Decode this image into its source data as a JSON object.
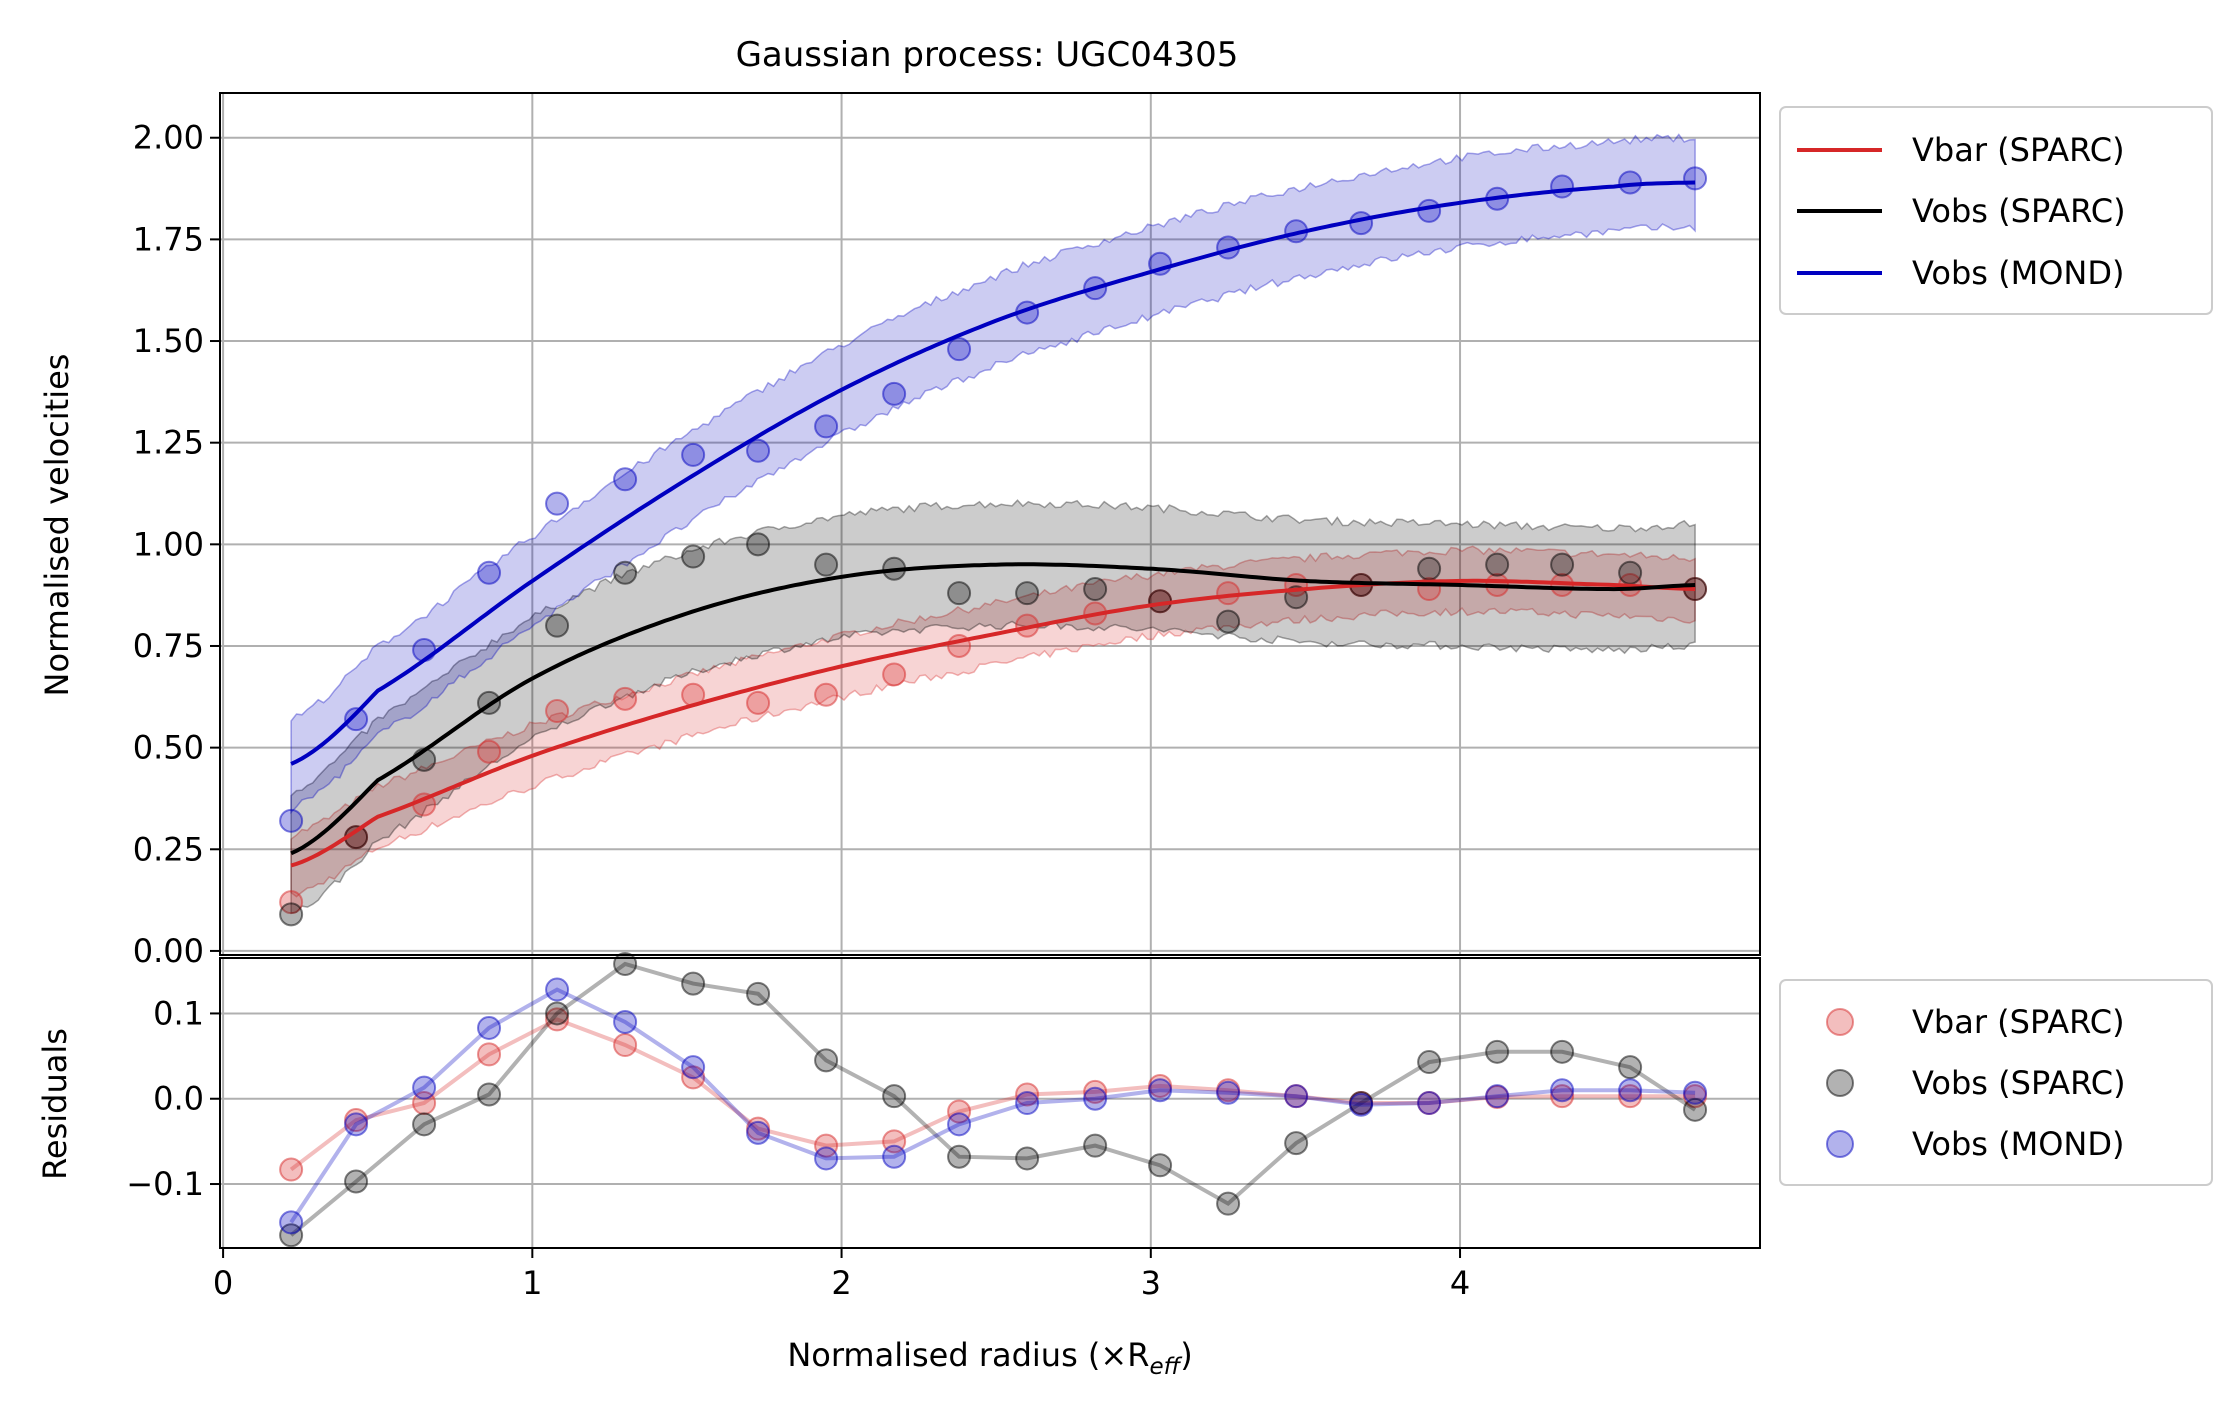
{
  "chart_data": [
    {
      "panel": "main",
      "type": "line",
      "title": "Gaussian process: UGC04305",
      "ylabel": "Normalised velocities",
      "xlabel": "",
      "xlim": [
        -0.01,
        4.97
      ],
      "ylim": [
        -0.01,
        2.11
      ],
      "yticks": [
        0.0,
        0.25,
        0.5,
        0.75,
        1.0,
        1.25,
        1.5,
        1.75,
        2.0
      ],
      "ytick_labels": [
        "0.00",
        "0.25",
        "0.50",
        "0.75",
        "1.00",
        "1.25",
        "1.50",
        "1.75",
        "2.00"
      ],
      "grid": true,
      "legend_position": "outside upper-right",
      "x": [
        0.22,
        0.43,
        0.65,
        0.86,
        1.08,
        1.3,
        1.52,
        1.73,
        1.95,
        2.17,
        2.38,
        2.6,
        2.82,
        3.03,
        3.25,
        3.47,
        3.68,
        3.9,
        4.12,
        4.33,
        4.55,
        4.76
      ],
      "series": [
        {
          "name": "Vbar (SPARC)",
          "color": "#d62728",
          "points": [
            0.12,
            0.28,
            0.36,
            0.49,
            0.59,
            0.62,
            0.63,
            0.61,
            0.63,
            0.68,
            0.75,
            0.8,
            0.83,
            0.86,
            0.88,
            0.9,
            0.9,
            0.89,
            0.9,
            0.9,
            0.9,
            0.89
          ],
          "curve_x": [
            0.22,
            0.5,
            1.0,
            1.5,
            2.0,
            2.5,
            3.0,
            3.5,
            4.0,
            4.5,
            4.76
          ],
          "curve_y": [
            0.21,
            0.33,
            0.48,
            0.6,
            0.7,
            0.78,
            0.85,
            0.89,
            0.91,
            0.9,
            0.89
          ],
          "band": 0.075
        },
        {
          "name": "Vobs (SPARC)",
          "color": "#000000",
          "points": [
            0.09,
            0.28,
            0.47,
            0.61,
            0.8,
            0.93,
            0.97,
            1.0,
            0.95,
            0.94,
            0.88,
            0.88,
            0.89,
            0.86,
            0.81,
            0.87,
            0.9,
            0.94,
            0.95,
            0.95,
            0.93,
            0.89
          ],
          "curve_x": [
            0.22,
            0.5,
            1.0,
            1.5,
            2.0,
            2.5,
            3.0,
            3.5,
            4.0,
            4.5,
            4.76
          ],
          "curve_y": [
            0.24,
            0.42,
            0.67,
            0.83,
            0.92,
            0.95,
            0.94,
            0.91,
            0.9,
            0.89,
            0.9
          ],
          "band": 0.15
        },
        {
          "name": "Vobs (MOND)",
          "color": "#0000c0",
          "points": [
            0.32,
            0.57,
            0.74,
            0.93,
            1.1,
            1.16,
            1.22,
            1.23,
            1.29,
            1.37,
            1.48,
            1.57,
            1.63,
            1.69,
            1.73,
            1.77,
            1.79,
            1.82,
            1.85,
            1.88,
            1.89,
            1.9
          ],
          "curve_x": [
            0.22,
            0.5,
            1.0,
            1.5,
            2.0,
            2.5,
            3.0,
            3.5,
            4.0,
            4.5,
            4.76
          ],
          "curve_y": [
            0.46,
            0.64,
            0.91,
            1.16,
            1.38,
            1.55,
            1.67,
            1.77,
            1.84,
            1.88,
            1.89
          ],
          "band": 0.11
        }
      ]
    },
    {
      "panel": "residuals",
      "type": "line",
      "ylabel": "Residuals",
      "xlabel": "Normalised radius (×R",
      "xlabel_sub": "eff",
      "xlabel_close": ")",
      "xlim": [
        -0.01,
        4.97
      ],
      "ylim": [
        -0.175,
        0.165
      ],
      "xticks": [
        0,
        1,
        2,
        3,
        4
      ],
      "xtick_labels": [
        "0",
        "1",
        "2",
        "3",
        "4"
      ],
      "yticks": [
        -0.1,
        0.0,
        0.1
      ],
      "ytick_labels": [
        "−0.1",
        "0.0",
        "0.1"
      ],
      "grid": true,
      "legend_position": "outside right",
      "x": [
        0.22,
        0.43,
        0.65,
        0.86,
        1.08,
        1.3,
        1.52,
        1.73,
        1.95,
        2.17,
        2.38,
        2.6,
        2.82,
        3.03,
        3.25,
        3.47,
        3.68,
        3.9,
        4.12,
        4.33,
        4.55,
        4.76
      ],
      "series": [
        {
          "name": "Vbar (SPARC)",
          "color": "#d62728",
          "values": [
            -0.083,
            -0.025,
            -0.005,
            0.052,
            0.093,
            0.063,
            0.025,
            -0.035,
            -0.055,
            -0.05,
            -0.015,
            0.005,
            0.008,
            0.015,
            0.01,
            0.003,
            -0.005,
            -0.005,
            0.002,
            0.003,
            0.003,
            0.003
          ]
        },
        {
          "name": "Vobs (SPARC)",
          "color": "#000000",
          "values": [
            -0.16,
            -0.097,
            -0.03,
            0.005,
            0.1,
            0.158,
            0.135,
            0.123,
            0.045,
            0.003,
            -0.068,
            -0.07,
            -0.055,
            -0.078,
            -0.123,
            -0.052,
            -0.005,
            0.043,
            0.055,
            0.055,
            0.037,
            -0.013
          ]
        },
        {
          "name": "Vobs (MOND)",
          "color": "#0000c0",
          "values": [
            -0.145,
            -0.03,
            0.013,
            0.083,
            0.128,
            0.09,
            0.037,
            -0.04,
            -0.07,
            -0.068,
            -0.03,
            -0.005,
            0.0,
            0.01,
            0.007,
            0.003,
            -0.007,
            -0.005,
            0.003,
            0.01,
            0.01,
            0.007
          ]
        }
      ]
    }
  ],
  "legend_top": {
    "entries": [
      "Vbar (SPARC)",
      "Vobs (SPARC)",
      "Vobs (MOND)"
    ]
  },
  "legend_bottom": {
    "entries": [
      "Vbar (SPARC)",
      "Vobs (SPARC)",
      "Vobs (MOND)"
    ]
  }
}
